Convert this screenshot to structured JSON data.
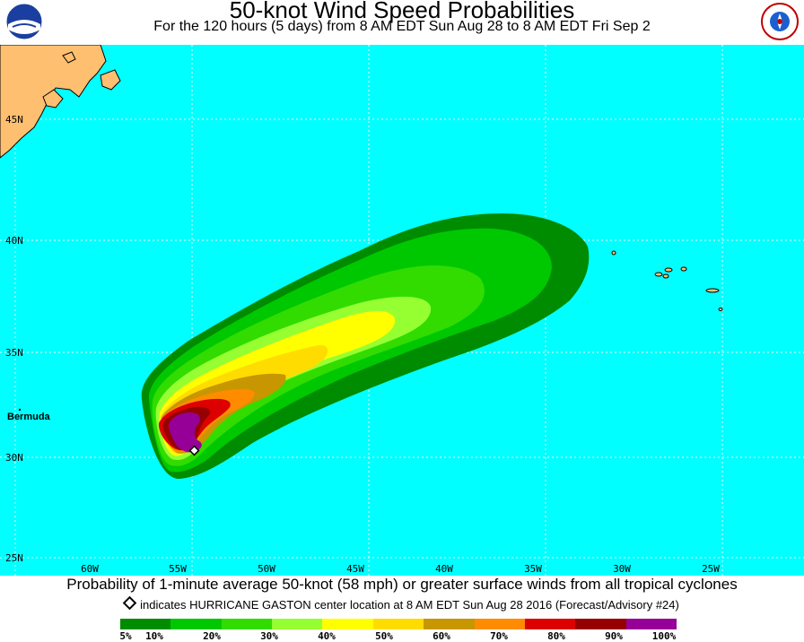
{
  "header": {
    "title": "50-knot Wind Speed Probabilities",
    "subtitle": "For the 120 hours (5 days) from 8 AM EDT Sun Aug 28 to 8 AM EDT Fri Sep 2"
  },
  "logos": {
    "left": "NOAA",
    "right": "NATIONAL WEATHER SERVICE"
  },
  "map": {
    "lat_labels": [
      "45N",
      "40N",
      "35N",
      "30N",
      "25N"
    ],
    "lon_labels": [
      "60W",
      "55W",
      "50W",
      "45W",
      "40W",
      "35W",
      "30W",
      "25W"
    ],
    "place_labels": {
      "bermuda": "Bermuda"
    },
    "colors": {
      "ocean": "#00ffff",
      "land": "#ffbf70",
      "grid": "#ffffff"
    }
  },
  "footer": {
    "caption": "Probability of 1-minute average 50-knot (58 mph) or greater surface winds from all tropical cyclones",
    "marker_note": "indicates HURRICANE GASTON center location at 8 AM EDT Sun Aug 28 2016 (Forecast/Advisory #24)"
  },
  "legend": {
    "colors": [
      "#008c00",
      "#00c800",
      "#32dc00",
      "#96ff32",
      "#ffff00",
      "#ffdc00",
      "#c89600",
      "#ff8c00",
      "#dc0000",
      "#960000",
      "#960096"
    ],
    "labels": [
      "5%",
      "10%",
      "20%",
      "30%",
      "40%",
      "50%",
      "60%",
      "70%",
      "80%",
      "90%",
      "100%"
    ]
  }
}
